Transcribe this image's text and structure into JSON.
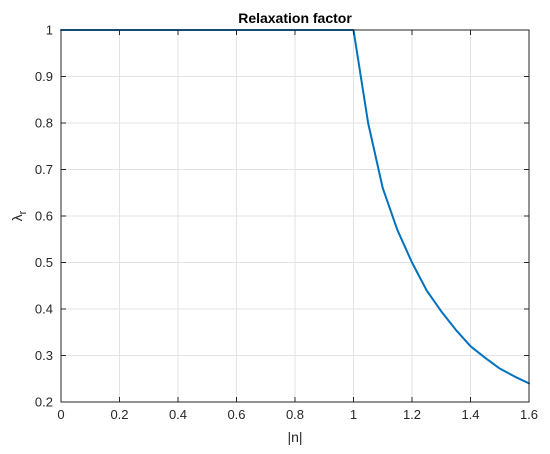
{
  "chart_data": {
    "type": "line",
    "title": "Relaxation factor",
    "xlabel": "|n|",
    "ylabel": "λr",
    "ylabel_main": "λ",
    "ylabel_sub": "r",
    "xlim": [
      0,
      1.6
    ],
    "ylim": [
      0.2,
      1
    ],
    "xticks": [
      "0",
      "0.2",
      "0.4",
      "0.6",
      "0.8",
      "1",
      "1.2",
      "1.4",
      "1.6"
    ],
    "yticks": [
      "0.2",
      "0.3",
      "0.4",
      "0.5",
      "0.6",
      "0.7",
      "0.8",
      "0.9",
      "1"
    ],
    "grid": true,
    "series": [
      {
        "color": "#0072BD",
        "x": [
          0,
          0.2,
          0.4,
          0.6,
          0.8,
          1.0,
          1.05,
          1.1,
          1.15,
          1.2,
          1.25,
          1.3,
          1.35,
          1.4,
          1.45,
          1.5,
          1.55,
          1.6
        ],
        "y": [
          1,
          1,
          1,
          1,
          1,
          1,
          0.8,
          0.66,
          0.57,
          0.5,
          0.44,
          0.395,
          0.355,
          0.32,
          0.295,
          0.272,
          0.255,
          0.24
        ]
      }
    ]
  }
}
